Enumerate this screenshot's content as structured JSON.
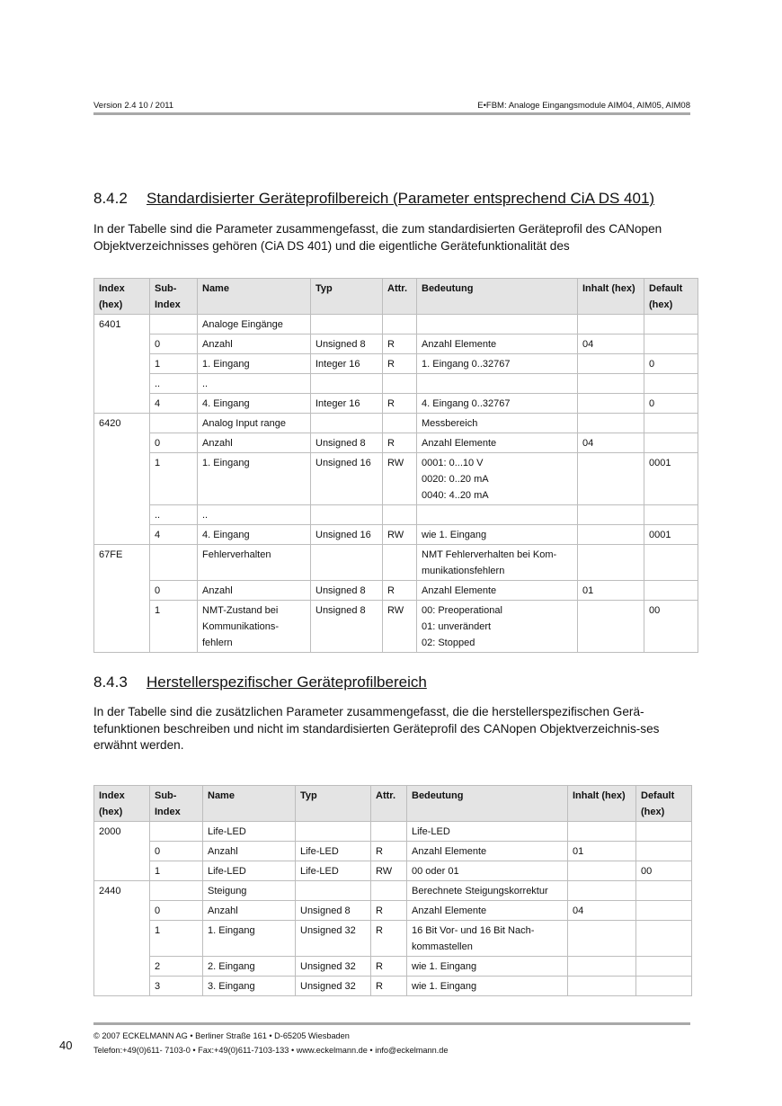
{
  "header": {
    "left": "Version 2.4  10 / 2011",
    "right": "E•FBM: Analoge Eingangsmodule AIM04, AIM05, AIM08"
  },
  "section1": {
    "number": "8.4.2",
    "title": "Standardisierter Geräteprofilbereich (Parameter entsprechend CiA DS 401)",
    "text": "In der Tabelle sind die Parameter zusammengefasst, die zum standardisierten Geräteprofil des CANopen Objektverzeichnisses gehören (CiA DS 401) und die eigentliche Gerätefunktionalität des"
  },
  "section2": {
    "number": "8.4.3",
    "title": "Herstellerspezifischer Geräteprofilbereich",
    "text": "In der Tabelle sind die zusätzlichen Parameter zusammengefasst, die die herstellerspezifischen Gerä-tefunktionen beschreiben und nicht im standardisierten Geräteprofil des CANopen Objektverzeichnis-ses erwähnt werden."
  },
  "columns": [
    "Index\n(hex)",
    "Sub-\nIndex",
    "Name",
    "Typ",
    "Attr.",
    "Bedeutung",
    "Inhalt (hex)",
    "Default\n(hex)"
  ],
  "table1": [
    {
      "index": "6401",
      "rows": [
        [
          "",
          "Analoge Eingänge",
          "",
          "",
          "",
          "",
          ""
        ],
        [
          "0",
          "Anzahl",
          "Unsigned 8",
          "R",
          "Anzahl Elemente",
          "04",
          ""
        ],
        [
          "1",
          "1. Eingang",
          "Integer 16",
          "R",
          "1. Eingang 0..32767",
          "",
          "0"
        ],
        [
          "..",
          "..",
          "",
          "",
          "",
          "",
          ""
        ],
        [
          "4",
          "4. Eingang",
          "Integer 16",
          "R",
          "4. Eingang 0..32767",
          "",
          "0"
        ]
      ]
    },
    {
      "index": "6420",
      "rows": [
        [
          "",
          "Analog Input range",
          "",
          "",
          "Messbereich",
          "",
          ""
        ],
        [
          "0",
          "Anzahl",
          "Unsigned 8",
          "R",
          "Anzahl Elemente",
          "04",
          ""
        ],
        [
          "1",
          "1. Eingang",
          "Unsigned 16",
          "RW",
          "0001: 0...10 V\n0020: 0..20 mA\n0040: 4..20 mA",
          "",
          "0001"
        ],
        [
          "..",
          "..",
          "",
          "",
          "",
          "",
          ""
        ],
        [
          "4",
          "4. Eingang",
          "Unsigned 16",
          "RW",
          "wie 1. Eingang",
          "",
          "0001"
        ]
      ]
    },
    {
      "index": "67FE",
      "rows": [
        [
          "",
          "Fehlerverhalten",
          "",
          "",
          "NMT Fehlerverhalten bei Kom-\nmunikationsfehlern",
          "",
          ""
        ],
        [
          "0",
          "Anzahl",
          "Unsigned 8",
          "R",
          "Anzahl Elemente",
          "01",
          ""
        ],
        [
          "1",
          "NMT-Zustand bei\nKommunikations-\nfehlern",
          "Unsigned 8",
          "RW",
          "00: Preoperational\n01: unverändert\n02: Stopped",
          "",
          "00"
        ]
      ]
    }
  ],
  "table2": [
    {
      "index": "2000",
      "rows": [
        [
          "",
          "Life-LED",
          "",
          "",
          "Life-LED",
          "",
          ""
        ],
        [
          "0",
          "Anzahl",
          "Life-LED",
          "R",
          "Anzahl Elemente",
          "01",
          ""
        ],
        [
          "1",
          "Life-LED",
          "Life-LED",
          "RW",
          "00 oder 01",
          "",
          "00"
        ]
      ]
    },
    {
      "index": "2440",
      "rows": [
        [
          "",
          "Steigung",
          "",
          "",
          "Berechnete Steigungskorrektur",
          "",
          ""
        ],
        [
          "0",
          "Anzahl",
          "Unsigned 8",
          "R",
          "Anzahl Elemente",
          "04",
          ""
        ],
        [
          "1",
          "1. Eingang",
          "Unsigned 32",
          "R",
          "16 Bit Vor- und 16 Bit Nach-\nkommastellen",
          "",
          ""
        ],
        [
          "2",
          "2. Eingang",
          "Unsigned 32",
          "R",
          "wie 1. Eingang",
          "",
          ""
        ],
        [
          "3",
          "3. Eingang",
          "Unsigned 32",
          "R",
          "wie 1. Eingang",
          "",
          ""
        ]
      ]
    }
  ],
  "footer": {
    "page_number": "40",
    "line1": "©  2007 ECKELMANN AG • Berliner Straße 161 • D-65205 Wiesbaden",
    "line2": "Telefon:+49(0)611- 7103-0 • Fax:+49(0)611-7103-133 • www.eckelmann.de • info@eckelmann.de"
  }
}
